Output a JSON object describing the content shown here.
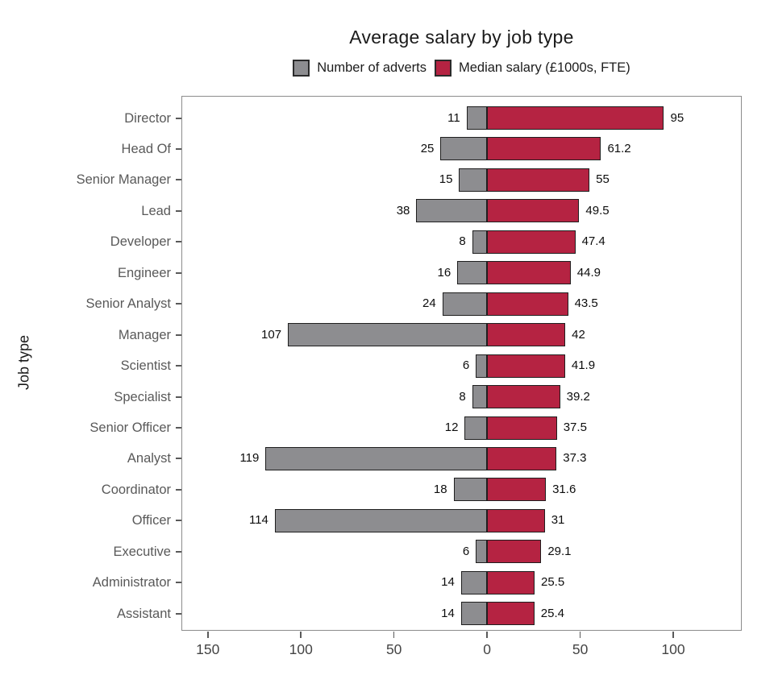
{
  "chart_data": {
    "type": "bar",
    "variant": "diverging-horizontal",
    "title": "Average salary by job type",
    "ylabel": "Job type",
    "xlabel": "",
    "grid": false,
    "legend_position": "top",
    "categories": [
      "Director",
      "Head Of",
      "Senior Manager",
      "Lead",
      "Developer",
      "Engineer",
      "Senior Analyst",
      "Manager",
      "Scientist",
      "Specialist",
      "Senior Officer",
      "Analyst",
      "Coordinator",
      "Officer",
      "Executive",
      "Administrator",
      "Assistant"
    ],
    "series": [
      {
        "name": "Number of adverts",
        "direction": "left",
        "color": "#8d8d90",
        "values": [
          11,
          25,
          15,
          38,
          8,
          16,
          24,
          107,
          6,
          8,
          12,
          119,
          18,
          114,
          6,
          14,
          14
        ],
        "labels": [
          "11",
          "25",
          "15",
          "38",
          "8",
          "16",
          "24",
          "107",
          "6",
          "8",
          "12",
          "119",
          "18",
          "114",
          "6",
          "14",
          "14"
        ]
      },
      {
        "name": "Median salary (£1000s, FTE)",
        "direction": "right",
        "color": "#b52342",
        "values": [
          95,
          61.2,
          55,
          49.5,
          47.4,
          44.9,
          43.5,
          42,
          41.9,
          39.2,
          37.5,
          37.3,
          31.6,
          31,
          29.1,
          25.5,
          25.4
        ],
        "labels": [
          "95",
          "61.2",
          "55",
          "49.5",
          "47.4",
          "44.9",
          "43.5",
          "42",
          "41.9",
          "39.2",
          "37.5",
          "37.3",
          "31.6",
          "31",
          "29.1",
          "25.5",
          "25.4"
        ]
      }
    ],
    "x_axis": {
      "tick_values": [
        -150,
        -100,
        -50,
        0,
        50,
        100
      ],
      "tick_labels": [
        "150",
        "100",
        "50",
        "0",
        "50",
        "100"
      ],
      "range": [
        -164.2,
        136.8
      ],
      "note": "tick labels show absolute values; left side = adverts count, right side = salary"
    },
    "colors": {
      "bar_border": "#1f1f1f",
      "panel_border": "#8c8c8c",
      "category_text": "#595959",
      "value_text": "#0d0d0d",
      "axis_text": "#454545",
      "title_text": "#1a1a1a",
      "background": "#ffffff"
    }
  }
}
